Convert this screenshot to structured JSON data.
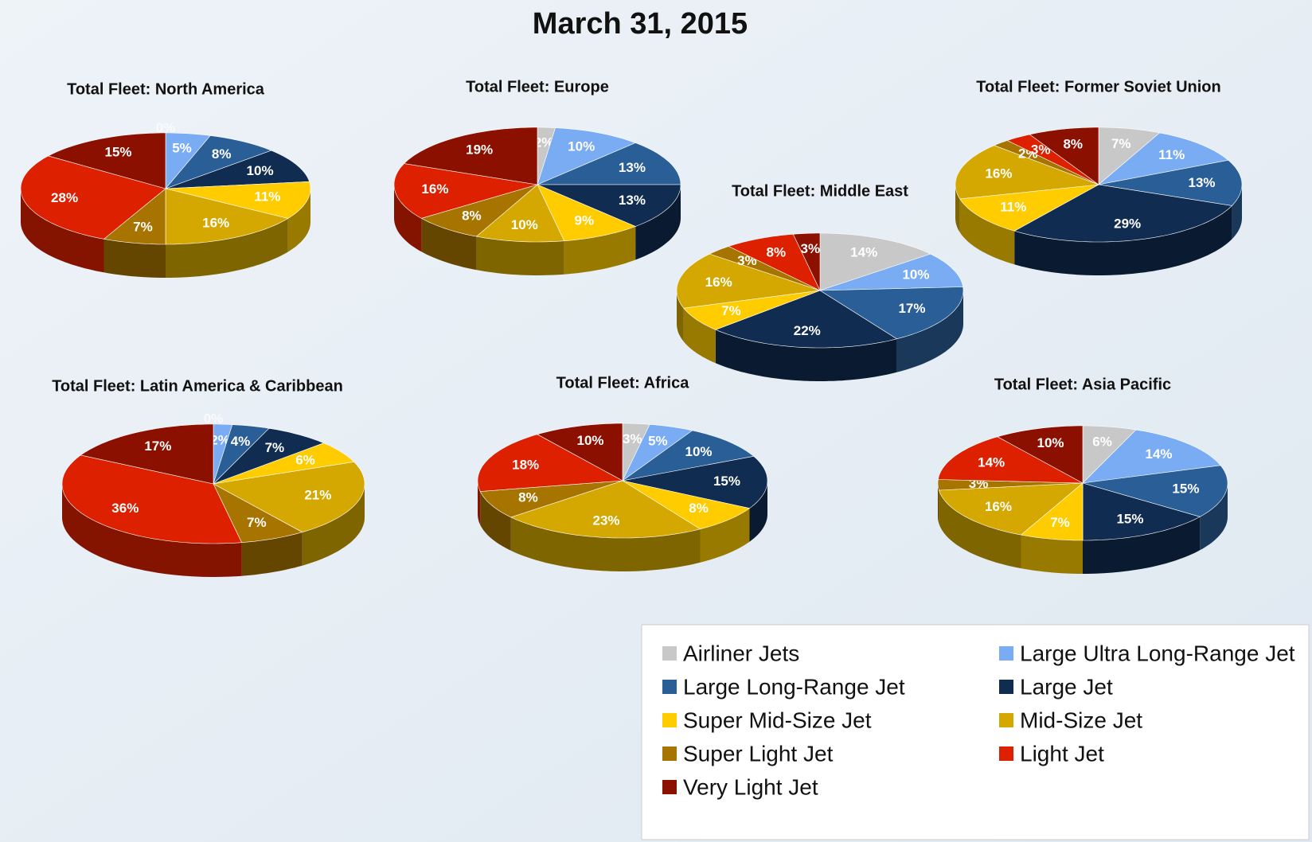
{
  "title": "March 31, 2015",
  "categories": [
    "Airliner Jets",
    "Large Ultra Long-Range Jet",
    "Large Long-Range Jet",
    "Large Jet",
    "Super Mid-Size Jet",
    "Mid-Size Jet",
    "Super Light Jet",
    "Light Jet",
    "Very Light Jet"
  ],
  "colors": [
    "#c8c8c8",
    "#7aacf4",
    "#2a5e96",
    "#102c50",
    "#ffcc00",
    "#d4a800",
    "#a87400",
    "#dc2000",
    "#8c1000"
  ],
  "chart_data": [
    {
      "type": "pie",
      "title": "Total Fleet: North America",
      "values": [
        0,
        5,
        8,
        10,
        11,
        16,
        7,
        28,
        15
      ],
      "value_labels": [
        "0%",
        "5%",
        "8%",
        "10%",
        "11%",
        "16%",
        "7%",
        "28%",
        "15%"
      ]
    },
    {
      "type": "pie",
      "title": "Total Fleet: Europe",
      "values": [
        2,
        10,
        13,
        13,
        9,
        10,
        8,
        16,
        19
      ],
      "value_labels": [
        "2%",
        "10%",
        "13%",
        "13%",
        "9%",
        "10%",
        "8%",
        "16%",
        "19%"
      ]
    },
    {
      "type": "pie",
      "title": "Total Fleet: Middle East",
      "values": [
        14,
        10,
        17,
        22,
        7,
        16,
        3,
        8,
        3
      ],
      "value_labels": [
        "14%",
        "10%",
        "17%",
        "22%",
        "7%",
        "16%",
        "3%",
        "8%",
        "3%"
      ]
    },
    {
      "type": "pie",
      "title": "Total Fleet: Former Soviet Union",
      "values": [
        7,
        11,
        13,
        29,
        11,
        16,
        2,
        3,
        8
      ],
      "value_labels": [
        "7%",
        "11%",
        "13%",
        "29%",
        "11%",
        "16%",
        "2%",
        "3%",
        "8%"
      ]
    },
    {
      "type": "pie",
      "title": "Total Fleet: Latin America & Caribbean",
      "values": [
        0,
        2,
        4,
        7,
        6,
        21,
        7,
        36,
        17
      ],
      "value_labels": [
        "0%",
        "2%",
        "4%",
        "7%",
        "6%",
        "21%",
        "7%",
        "36%",
        "17%"
      ]
    },
    {
      "type": "pie",
      "title": "Total Fleet: Africa",
      "values": [
        3,
        5,
        10,
        15,
        8,
        23,
        8,
        18,
        10
      ],
      "value_labels": [
        "3%",
        "5%",
        "10%",
        "15%",
        "8%",
        "23%",
        "8%",
        "18%",
        "10%"
      ]
    },
    {
      "type": "pie",
      "title": "Total Fleet: Asia Pacific",
      "values": [
        6,
        14,
        15,
        15,
        7,
        16,
        3,
        14,
        10
      ],
      "value_labels": [
        "6%",
        "14%",
        "15%",
        "15%",
        "7%",
        "16%",
        "3%",
        "14%",
        "10%"
      ]
    }
  ]
}
